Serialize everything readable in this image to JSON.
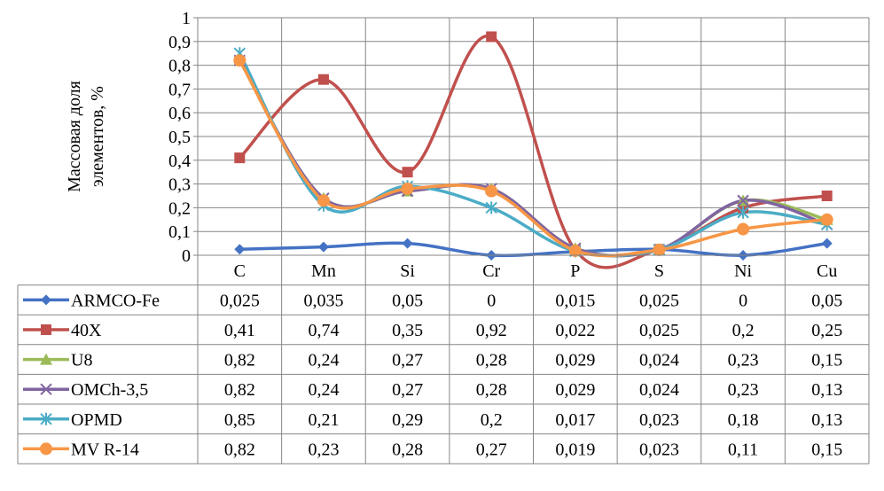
{
  "chart_data": {
    "type": "line",
    "title": "",
    "xlabel": "",
    "ylabel_lines": [
      "Массовая доля",
      "элементов, %"
    ],
    "categories": [
      "C",
      "Mn",
      "Si",
      "Cr",
      "P",
      "S",
      "Ni",
      "Cu"
    ],
    "ylim": [
      0,
      1
    ],
    "yticks": [
      "0",
      "0,1",
      "0,2",
      "0,3",
      "0,4",
      "0,5",
      "0,6",
      "0,7",
      "0,8",
      "0,9",
      "1"
    ],
    "grid": true,
    "legend": "data-table",
    "series": [
      {
        "name": "ARMCO-Fe",
        "color": "#4472C4",
        "marker": "diamond",
        "values": [
          0.025,
          0.035,
          0.05,
          0,
          0.015,
          0.025,
          0,
          0.05
        ],
        "labels": [
          "0,025",
          "0,035",
          "0,05",
          "0",
          "0,015",
          "0,025",
          "0",
          "0,05"
        ]
      },
      {
        "name": "40X",
        "color": "#C0504D",
        "marker": "square",
        "values": [
          0.41,
          0.74,
          0.35,
          0.92,
          0.022,
          0.025,
          0.2,
          0.25
        ],
        "labels": [
          "0,41",
          "0,74",
          "0,35",
          "0,92",
          "0,022",
          "0,025",
          "0,2",
          "0,25"
        ]
      },
      {
        "name": "U8",
        "color": "#9BBB59",
        "marker": "triangle",
        "values": [
          0.82,
          0.24,
          0.27,
          0.28,
          0.029,
          0.024,
          0.23,
          0.15
        ],
        "labels": [
          "0,82",
          "0,24",
          "0,27",
          "0,28",
          "0,029",
          "0,024",
          "0,23",
          "0,15"
        ]
      },
      {
        "name": "OMCh-3,5",
        "color": "#8064A2",
        "marker": "x",
        "values": [
          0.82,
          0.24,
          0.27,
          0.28,
          0.029,
          0.024,
          0.23,
          0.13
        ],
        "labels": [
          "0,82",
          "0,24",
          "0,27",
          "0,28",
          "0,029",
          "0,024",
          "0,23",
          "0,13"
        ]
      },
      {
        "name": "OPMD",
        "color": "#4BACC6",
        "marker": "star",
        "values": [
          0.85,
          0.21,
          0.29,
          0.2,
          0.017,
          0.023,
          0.18,
          0.13
        ],
        "labels": [
          "0,85",
          "0,21",
          "0,29",
          "0,2",
          "0,017",
          "0,023",
          "0,18",
          "0,13"
        ]
      },
      {
        "name": "MV R-14",
        "color": "#F79646",
        "marker": "circle",
        "values": [
          0.82,
          0.23,
          0.28,
          0.27,
          0.019,
          0.023,
          0.11,
          0.15
        ],
        "labels": [
          "0,82",
          "0,23",
          "0,28",
          "0,27",
          "0,019",
          "0,023",
          "0,11",
          "0,15"
        ]
      }
    ]
  }
}
